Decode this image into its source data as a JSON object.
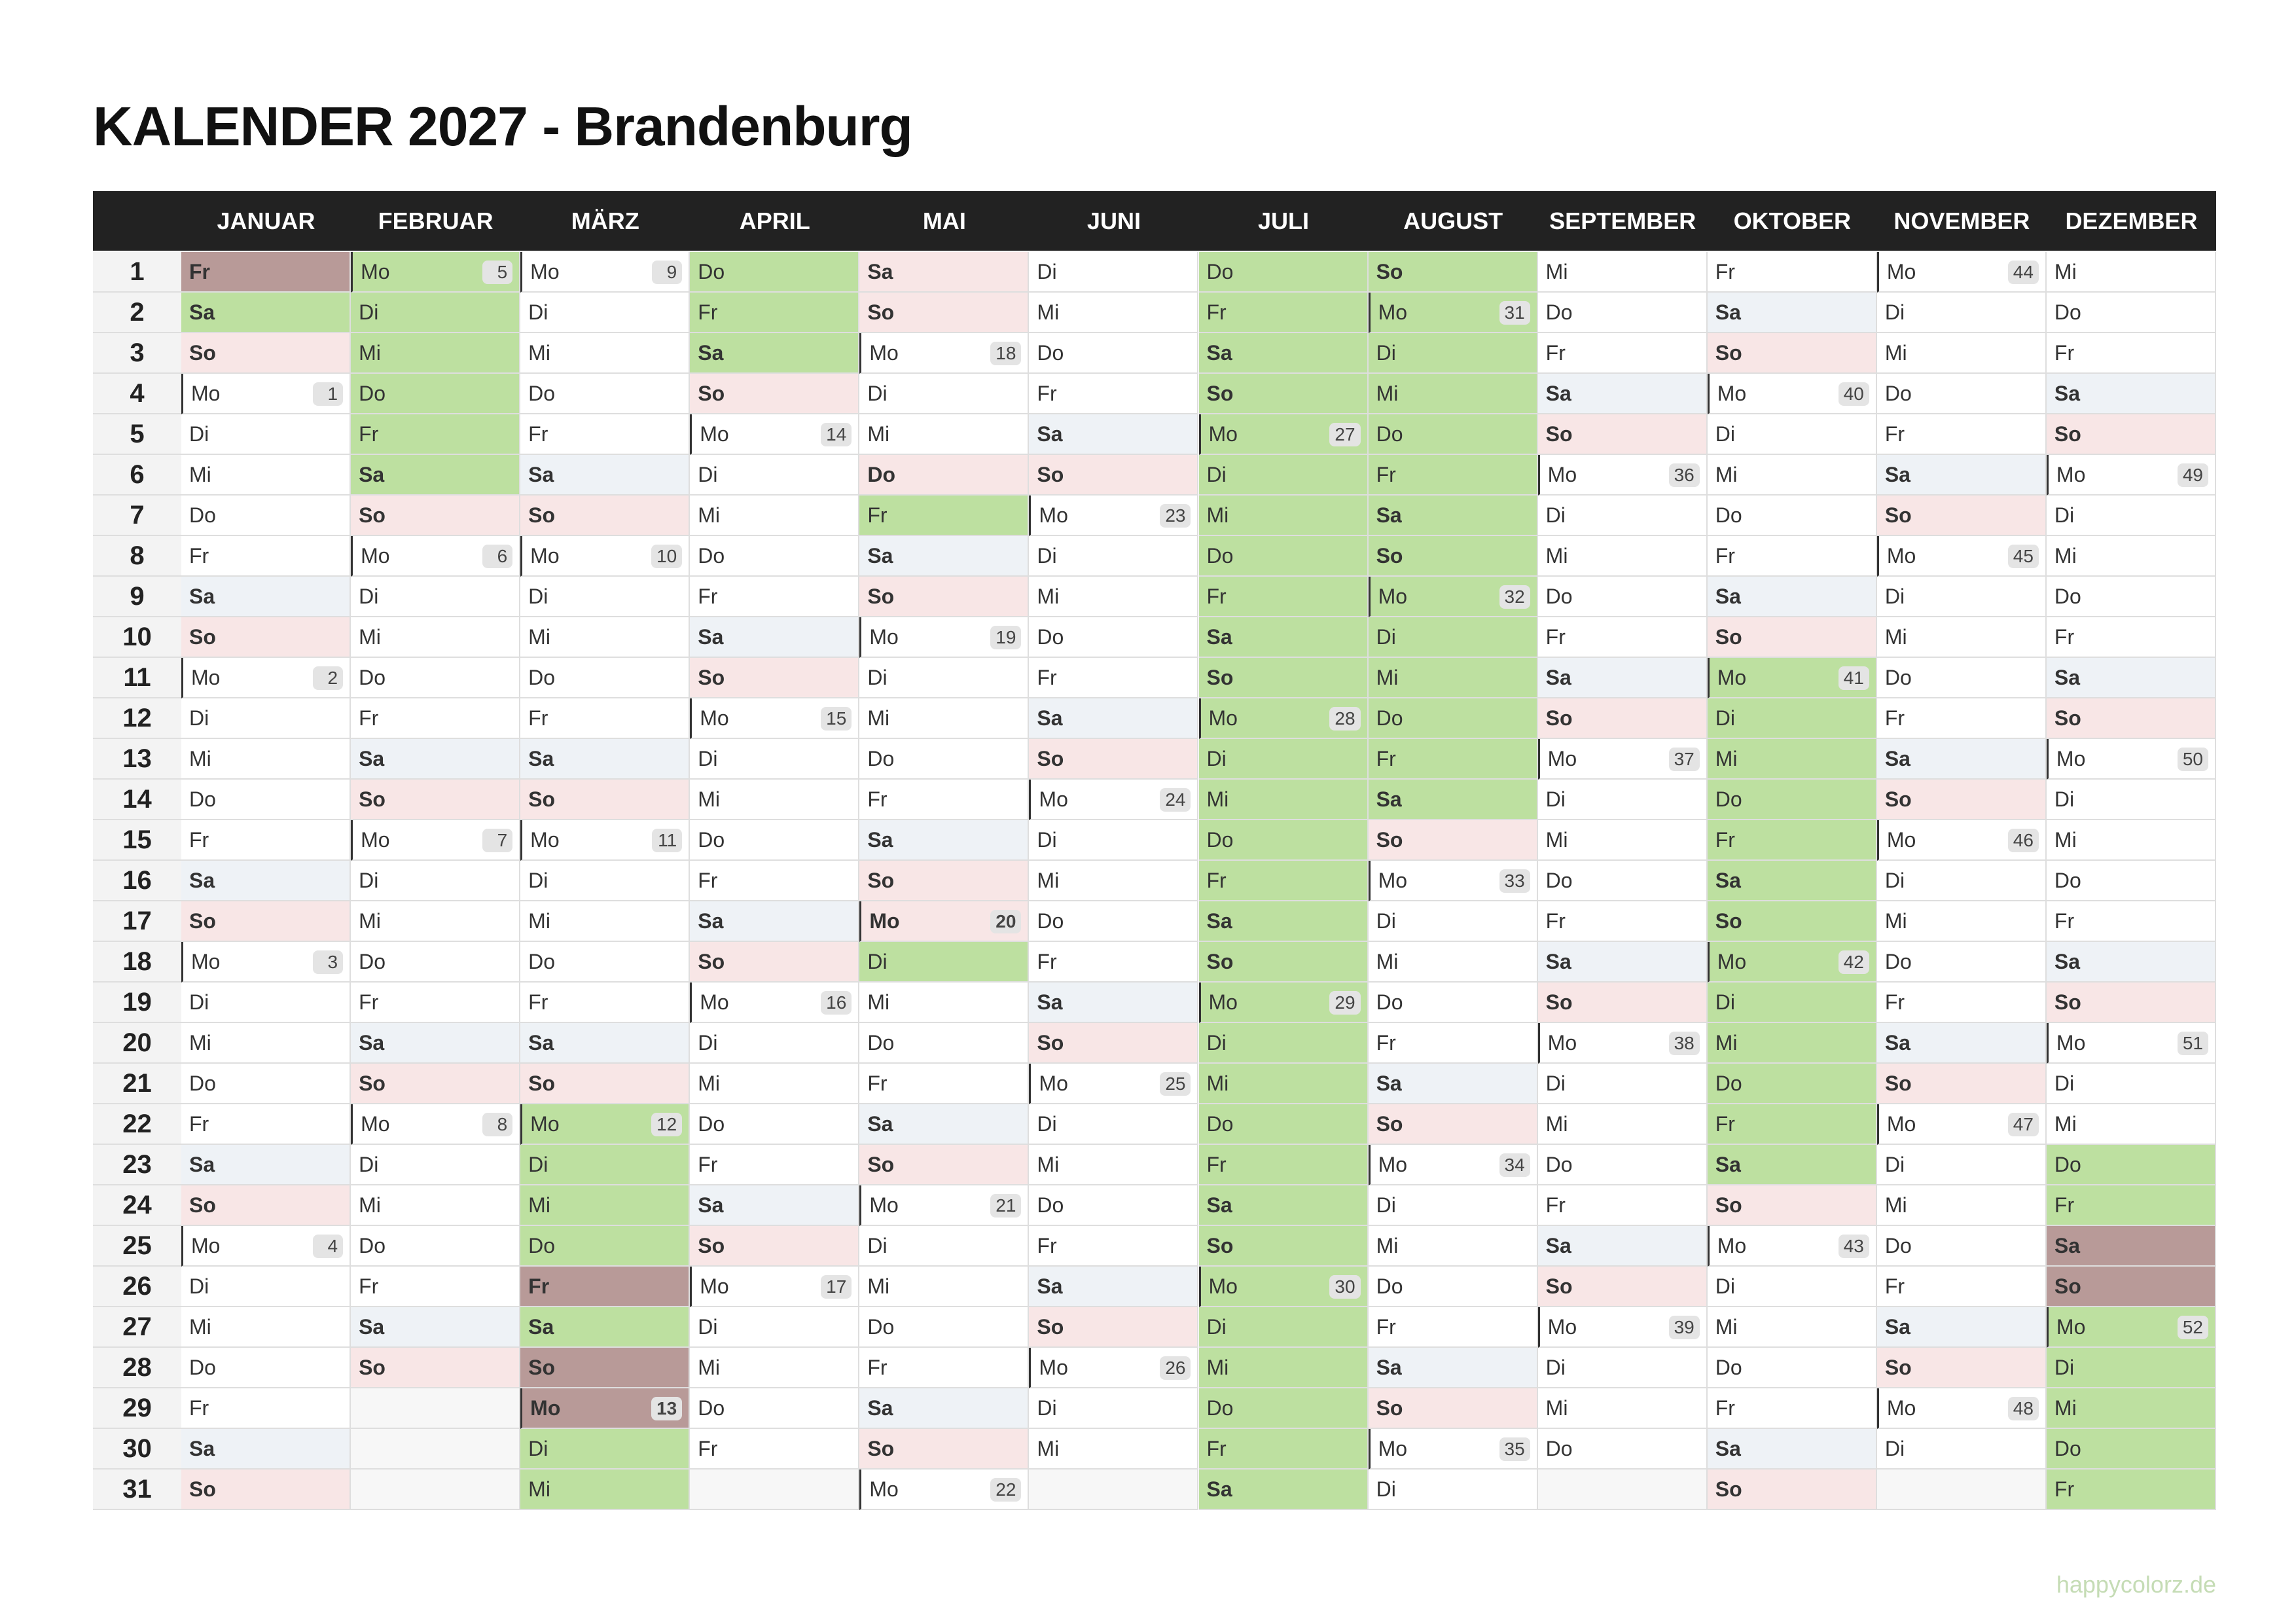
{
  "title": "KALENDER 2027 - Brandenburg",
  "footer": "happycolorz.de",
  "days": [
    1,
    2,
    3,
    4,
    5,
    6,
    7,
    8,
    9,
    10,
    11,
    12,
    13,
    14,
    15,
    16,
    17,
    18,
    19,
    20,
    21,
    22,
    23,
    24,
    25,
    26,
    27,
    28,
    29,
    30,
    31
  ],
  "colors": {
    "header_bg": "#222222",
    "header_text": "#ffffff",
    "vacation": "#bde0a0",
    "holiday": "#f8e6e6",
    "holiday_in_vacation": "#b89a98",
    "empty": "#f7f7f7",
    "day_column": "#f3f3f3",
    "footer": "#c5dcb5"
  },
  "day_colors": {
    "Sa": {
      "bg": "#eef2f6",
      "bold": true
    },
    "So": {
      "bg": "#f8e6e6",
      "bold": true
    }
  },
  "months": [
    {
      "name": "JANUAR",
      "weekdays": [
        "Fr",
        "Sa",
        "So",
        "Mo",
        "Di",
        "Mi",
        "Do",
        "Fr",
        "Sa",
        "So",
        "Mo",
        "Di",
        "Mi",
        "Do",
        "Fr",
        "Sa",
        "So",
        "Mo",
        "Di",
        "Mi",
        "Do",
        "Fr",
        "Sa",
        "So",
        "Mo",
        "Di",
        "Mi",
        "Do",
        "Fr",
        "Sa",
        "So"
      ],
      "weeks": [
        null,
        null,
        null,
        1,
        null,
        null,
        null,
        null,
        null,
        null,
        2,
        null,
        null,
        null,
        null,
        null,
        null,
        3,
        null,
        null,
        null,
        null,
        null,
        null,
        4,
        null,
        null,
        null,
        null,
        null,
        null
      ],
      "vacation": [
        [
          1,
          2
        ]
      ],
      "holidays": [
        1
      ]
    },
    {
      "name": "FEBRUAR",
      "weekdays": [
        "Mo",
        "Di",
        "Mi",
        "Do",
        "Fr",
        "Sa",
        "So",
        "Mo",
        "Di",
        "Mi",
        "Do",
        "Fr",
        "Sa",
        "So",
        "Mo",
        "Di",
        "Mi",
        "Do",
        "Fr",
        "Sa",
        "So",
        "Mo",
        "Di",
        "Mi",
        "Do",
        "Fr",
        "Sa",
        "So"
      ],
      "weeks": [
        5,
        null,
        null,
        null,
        null,
        null,
        null,
        6,
        null,
        null,
        null,
        null,
        null,
        null,
        7,
        null,
        null,
        null,
        null,
        null,
        null,
        8,
        null,
        null,
        null,
        null,
        null,
        null
      ],
      "vacation": [
        [
          1,
          6
        ]
      ],
      "holidays": []
    },
    {
      "name": "MÄRZ",
      "weekdays": [
        "Mo",
        "Di",
        "Mi",
        "Do",
        "Fr",
        "Sa",
        "So",
        "Mo",
        "Di",
        "Mi",
        "Do",
        "Fr",
        "Sa",
        "So",
        "Mo",
        "Di",
        "Mi",
        "Do",
        "Fr",
        "Sa",
        "So",
        "Mo",
        "Di",
        "Mi",
        "Do",
        "Fr",
        "Sa",
        "So",
        "Mo",
        "Di",
        "Mi"
      ],
      "weeks": [
        9,
        null,
        null,
        null,
        null,
        null,
        null,
        10,
        null,
        null,
        null,
        null,
        null,
        null,
        11,
        null,
        null,
        null,
        null,
        null,
        null,
        12,
        null,
        null,
        null,
        null,
        null,
        null,
        13,
        null,
        null
      ],
      "vacation": [
        [
          22,
          31
        ]
      ],
      "holidays": [
        26,
        28,
        29
      ]
    },
    {
      "name": "APRIL",
      "weekdays": [
        "Do",
        "Fr",
        "Sa",
        "So",
        "Mo",
        "Di",
        "Mi",
        "Do",
        "Fr",
        "Sa",
        "So",
        "Mo",
        "Di",
        "Mi",
        "Do",
        "Fr",
        "Sa",
        "So",
        "Mo",
        "Di",
        "Mi",
        "Do",
        "Fr",
        "Sa",
        "So",
        "Mo",
        "Di",
        "Mi",
        "Do",
        "Fr"
      ],
      "weeks": [
        null,
        null,
        null,
        null,
        14,
        null,
        null,
        null,
        null,
        null,
        null,
        15,
        null,
        null,
        null,
        null,
        null,
        null,
        16,
        null,
        null,
        null,
        null,
        null,
        null,
        17,
        null,
        null,
        null,
        null
      ],
      "vacation": [
        [
          1,
          3
        ]
      ],
      "holidays": []
    },
    {
      "name": "MAI",
      "weekdays": [
        "Sa",
        "So",
        "Mo",
        "Di",
        "Mi",
        "Do",
        "Fr",
        "Sa",
        "So",
        "Mo",
        "Di",
        "Mi",
        "Do",
        "Fr",
        "Sa",
        "So",
        "Mo",
        "Di",
        "Mi",
        "Do",
        "Fr",
        "Sa",
        "So",
        "Mo",
        "Di",
        "Mi",
        "Do",
        "Fr",
        "Sa",
        "So",
        "Mo"
      ],
      "weeks": [
        null,
        null,
        18,
        null,
        null,
        null,
        null,
        null,
        null,
        19,
        null,
        null,
        null,
        null,
        null,
        null,
        20,
        null,
        null,
        null,
        null,
        null,
        null,
        21,
        null,
        null,
        null,
        null,
        null,
        null,
        22
      ],
      "vacation": [
        [
          7,
          7
        ],
        [
          18,
          18
        ]
      ],
      "holidays": [
        1,
        6,
        16,
        17
      ]
    },
    {
      "name": "JUNI",
      "weekdays": [
        "Di",
        "Mi",
        "Do",
        "Fr",
        "Sa",
        "So",
        "Mo",
        "Di",
        "Mi",
        "Do",
        "Fr",
        "Sa",
        "So",
        "Mo",
        "Di",
        "Mi",
        "Do",
        "Fr",
        "Sa",
        "So",
        "Mo",
        "Di",
        "Mi",
        "Do",
        "Fr",
        "Sa",
        "So",
        "Mo",
        "Di",
        "Mi"
      ],
      "weeks": [
        null,
        null,
        null,
        null,
        null,
        null,
        23,
        null,
        null,
        null,
        null,
        null,
        null,
        24,
        null,
        null,
        null,
        null,
        null,
        null,
        25,
        null,
        null,
        null,
        null,
        null,
        null,
        26,
        null,
        null
      ],
      "vacation": [],
      "holidays": []
    },
    {
      "name": "JULI",
      "weekdays": [
        "Do",
        "Fr",
        "Sa",
        "So",
        "Mo",
        "Di",
        "Mi",
        "Do",
        "Fr",
        "Sa",
        "So",
        "Mo",
        "Di",
        "Mi",
        "Do",
        "Fr",
        "Sa",
        "So",
        "Mo",
        "Di",
        "Mi",
        "Do",
        "Fr",
        "Sa",
        "So",
        "Mo",
        "Di",
        "Mi",
        "Do",
        "Fr",
        "Sa"
      ],
      "weeks": [
        null,
        null,
        null,
        null,
        27,
        null,
        null,
        null,
        null,
        null,
        null,
        28,
        null,
        null,
        null,
        null,
        null,
        null,
        29,
        null,
        null,
        null,
        null,
        null,
        null,
        30,
        null,
        null,
        null,
        null,
        null
      ],
      "vacation": [
        [
          1,
          31
        ]
      ],
      "holidays": []
    },
    {
      "name": "AUGUST",
      "weekdays": [
        "So",
        "Mo",
        "Di",
        "Mi",
        "Do",
        "Fr",
        "Sa",
        "So",
        "Mo",
        "Di",
        "Mi",
        "Do",
        "Fr",
        "Sa",
        "So",
        "Mo",
        "Di",
        "Mi",
        "Do",
        "Fr",
        "Sa",
        "So",
        "Mo",
        "Di",
        "Mi",
        "Do",
        "Fr",
        "Sa",
        "So",
        "Mo",
        "Di"
      ],
      "weeks": [
        null,
        31,
        null,
        null,
        null,
        null,
        null,
        null,
        32,
        null,
        null,
        null,
        null,
        null,
        null,
        33,
        null,
        null,
        null,
        null,
        null,
        null,
        34,
        null,
        null,
        null,
        null,
        null,
        null,
        35,
        null
      ],
      "vacation": [
        [
          1,
          14
        ]
      ],
      "holidays": []
    },
    {
      "name": "SEPTEMBER",
      "weekdays": [
        "Mi",
        "Do",
        "Fr",
        "Sa",
        "So",
        "Mo",
        "Di",
        "Mi",
        "Do",
        "Fr",
        "Sa",
        "So",
        "Mo",
        "Di",
        "Mi",
        "Do",
        "Fr",
        "Sa",
        "So",
        "Mo",
        "Di",
        "Mi",
        "Do",
        "Fr",
        "Sa",
        "So",
        "Mo",
        "Di",
        "Mi",
        "Do"
      ],
      "weeks": [
        null,
        null,
        null,
        null,
        null,
        36,
        null,
        null,
        null,
        null,
        null,
        null,
        37,
        null,
        null,
        null,
        null,
        null,
        null,
        38,
        null,
        null,
        null,
        null,
        null,
        null,
        39,
        null,
        null,
        null
      ],
      "vacation": [],
      "holidays": []
    },
    {
      "name": "OKTOBER",
      "weekdays": [
        "Fr",
        "Sa",
        "So",
        "Mo",
        "Di",
        "Mi",
        "Do",
        "Fr",
        "Sa",
        "So",
        "Mo",
        "Di",
        "Mi",
        "Do",
        "Fr",
        "Sa",
        "So",
        "Mo",
        "Di",
        "Mi",
        "Do",
        "Fr",
        "Sa",
        "So",
        "Mo",
        "Di",
        "Mi",
        "Do",
        "Fr",
        "Sa",
        "So"
      ],
      "weeks": [
        null,
        null,
        null,
        40,
        null,
        null,
        null,
        null,
        null,
        null,
        41,
        null,
        null,
        null,
        null,
        null,
        null,
        42,
        null,
        null,
        null,
        null,
        null,
        null,
        43,
        null,
        null,
        null,
        null,
        null,
        null
      ],
      "vacation": [
        [
          11,
          23
        ]
      ],
      "holidays": [
        3,
        31
      ]
    },
    {
      "name": "NOVEMBER",
      "weekdays": [
        "Mo",
        "Di",
        "Mi",
        "Do",
        "Fr",
        "Sa",
        "So",
        "Mo",
        "Di",
        "Mi",
        "Do",
        "Fr",
        "Sa",
        "So",
        "Mo",
        "Di",
        "Mi",
        "Do",
        "Fr",
        "Sa",
        "So",
        "Mo",
        "Di",
        "Mi",
        "Do",
        "Fr",
        "Sa",
        "So",
        "Mo",
        "Di"
      ],
      "weeks": [
        44,
        null,
        null,
        null,
        null,
        null,
        null,
        45,
        null,
        null,
        null,
        null,
        null,
        null,
        46,
        null,
        null,
        null,
        null,
        null,
        null,
        47,
        null,
        null,
        null,
        null,
        null,
        null,
        48,
        null
      ],
      "vacation": [],
      "holidays": []
    },
    {
      "name": "DEZEMBER",
      "weekdays": [
        "Mi",
        "Do",
        "Fr",
        "Sa",
        "So",
        "Mo",
        "Di",
        "Mi",
        "Do",
        "Fr",
        "Sa",
        "So",
        "Mo",
        "Di",
        "Mi",
        "Do",
        "Fr",
        "Sa",
        "So",
        "Mo",
        "Di",
        "Mi",
        "Do",
        "Fr",
        "Sa",
        "So",
        "Mo",
        "Di",
        "Mi",
        "Do",
        "Fr"
      ],
      "weeks": [
        null,
        null,
        null,
        null,
        null,
        49,
        null,
        null,
        null,
        null,
        null,
        null,
        50,
        null,
        null,
        null,
        null,
        null,
        null,
        51,
        null,
        null,
        null,
        null,
        null,
        null,
        52,
        null,
        null,
        null,
        null
      ],
      "vacation": [
        [
          23,
          31
        ]
      ],
      "holidays": [
        25,
        26
      ]
    }
  ]
}
